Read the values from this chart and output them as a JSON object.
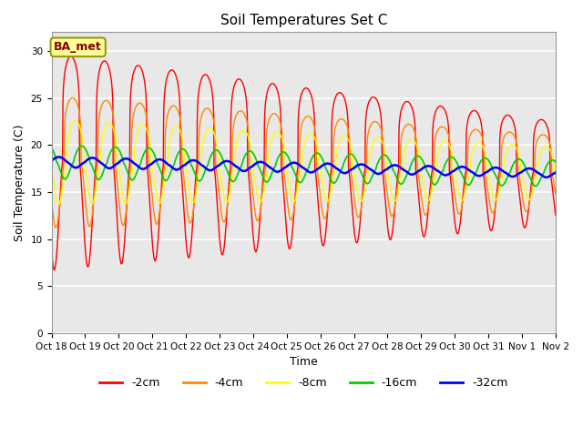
{
  "title": "Soil Temperatures Set C",
  "xlabel": "Time",
  "ylabel": "Soil Temperature (C)",
  "ylim": [
    0,
    32
  ],
  "yticks": [
    0,
    5,
    10,
    15,
    20,
    25,
    30
  ],
  "colors": {
    "-2cm": "#ff0000",
    "-4cm": "#ff8800",
    "-8cm": "#ffff00",
    "-16cm": "#00cc00",
    "-32cm": "#0000ff"
  },
  "legend_label": "BA_met",
  "background_color": "#e8e8e8",
  "n_days": 15,
  "points_per_day": 144
}
